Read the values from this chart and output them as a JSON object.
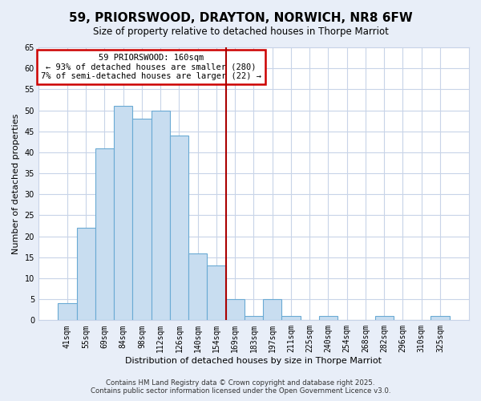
{
  "title": "59, PRIORSWOOD, DRAYTON, NORWICH, NR8 6FW",
  "subtitle": "Size of property relative to detached houses in Thorpe Marriot",
  "xlabel": "Distribution of detached houses by size in Thorpe Marriot",
  "ylabel": "Number of detached properties",
  "bar_labels": [
    "41sqm",
    "55sqm",
    "69sqm",
    "84sqm",
    "98sqm",
    "112sqm",
    "126sqm",
    "140sqm",
    "154sqm",
    "169sqm",
    "183sqm",
    "197sqm",
    "211sqm",
    "225sqm",
    "240sqm",
    "254sqm",
    "268sqm",
    "282sqm",
    "296sqm",
    "310sqm",
    "325sqm"
  ],
  "bar_values": [
    4,
    22,
    41,
    51,
    48,
    50,
    44,
    16,
    13,
    5,
    1,
    5,
    1,
    0,
    1,
    0,
    0,
    1,
    0,
    0,
    1
  ],
  "bar_color": "#c8ddf0",
  "bar_edge_color": "#6aaad4",
  "vline_x": 8.5,
  "vline_color": "#aa0000",
  "annotation_title": "59 PRIORSWOOD: 160sqm",
  "annotation_line1": "← 93% of detached houses are smaller (280)",
  "annotation_line2": "7% of semi-detached houses are larger (22) →",
  "annotation_box_color": "white",
  "annotation_box_edge": "#cc0000",
  "ylim": [
    0,
    65
  ],
  "yticks": [
    0,
    5,
    10,
    15,
    20,
    25,
    30,
    35,
    40,
    45,
    50,
    55,
    60,
    65
  ],
  "bg_color": "#e8eef8",
  "plot_bg_color": "#ffffff",
  "grid_color": "#c8d4e8",
  "footer_line1": "Contains HM Land Registry data © Crown copyright and database right 2025.",
  "footer_line2": "Contains public sector information licensed under the Open Government Licence v3.0."
}
